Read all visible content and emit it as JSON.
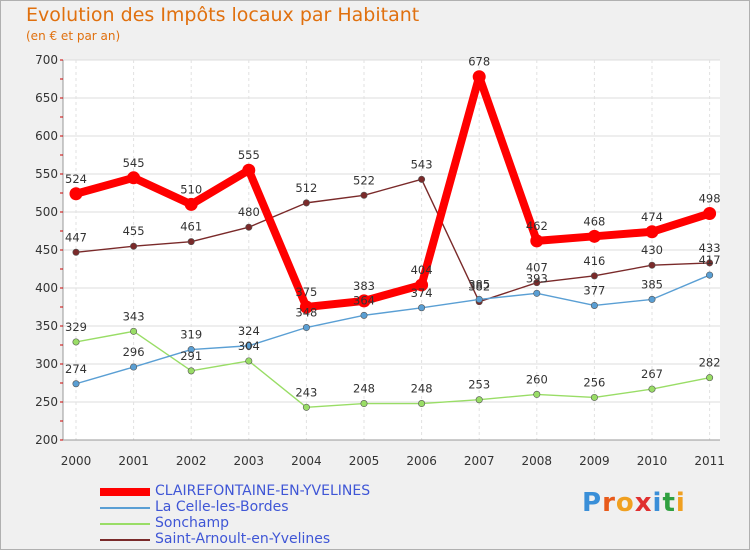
{
  "chart_data": {
    "type": "line",
    "title": "Evolution des Impôts locaux par Habitant",
    "subtitle": "(en € et par an)",
    "categories": [
      "2000",
      "2001",
      "2002",
      "2003",
      "2004",
      "2005",
      "2006",
      "2007",
      "2008",
      "2009",
      "2010",
      "2011"
    ],
    "y_ticks": [
      200,
      250,
      300,
      350,
      400,
      450,
      500,
      550,
      600,
      650,
      700
    ],
    "ylim": [
      200,
      700
    ],
    "series": [
      {
        "name": "CLAIREFONTAINE-EN-YVELINES",
        "color": "#ff0000",
        "values": [
          524,
          545,
          510,
          555,
          375,
          383,
          404,
          678,
          462,
          468,
          474,
          498
        ],
        "labels": [
          "524",
          "545",
          "510",
          "555",
          "375",
          "383",
          "404",
          "678",
          "462",
          "468",
          "474",
          "498"
        ]
      },
      {
        "name": "La Celle-les-Bordes",
        "color": "#5a9fd4",
        "values": [
          274,
          296,
          319,
          324,
          348,
          364,
          374,
          385,
          393,
          377,
          385,
          417
        ],
        "labels": [
          "274",
          "296",
          "319",
          "324",
          "348",
          "364",
          "374",
          "385",
          "393",
          "377",
          "385",
          "417"
        ]
      },
      {
        "name": "Sonchamp",
        "color": "#99dd66",
        "values": [
          329,
          343,
          291,
          304,
          243,
          248,
          248,
          253,
          260,
          256,
          267,
          282
        ],
        "labels": [
          "329",
          "343",
          "291",
          "304",
          "243",
          "248",
          "248",
          "253",
          "260",
          "256",
          "267",
          "282"
        ]
      },
      {
        "name": "Saint-Arnoult-en-Yvelines",
        "color": "#7a2a2a",
        "values": [
          447,
          455,
          461,
          480,
          512,
          522,
          543,
          382,
          407,
          416,
          430,
          433
        ],
        "labels": [
          "447",
          "455",
          "461",
          "480",
          "512",
          "522",
          "543",
          "382",
          "407",
          "416",
          "430",
          "433"
        ]
      }
    ]
  },
  "logo": {
    "letters": [
      "P",
      "r",
      "o",
      "x",
      "i",
      "t",
      "i"
    ],
    "colors": [
      "#3a8fd8",
      "#e85a1a",
      "#f0a020",
      "#e03030",
      "#3a8fd8",
      "#30a040",
      "#f0a020"
    ]
  }
}
